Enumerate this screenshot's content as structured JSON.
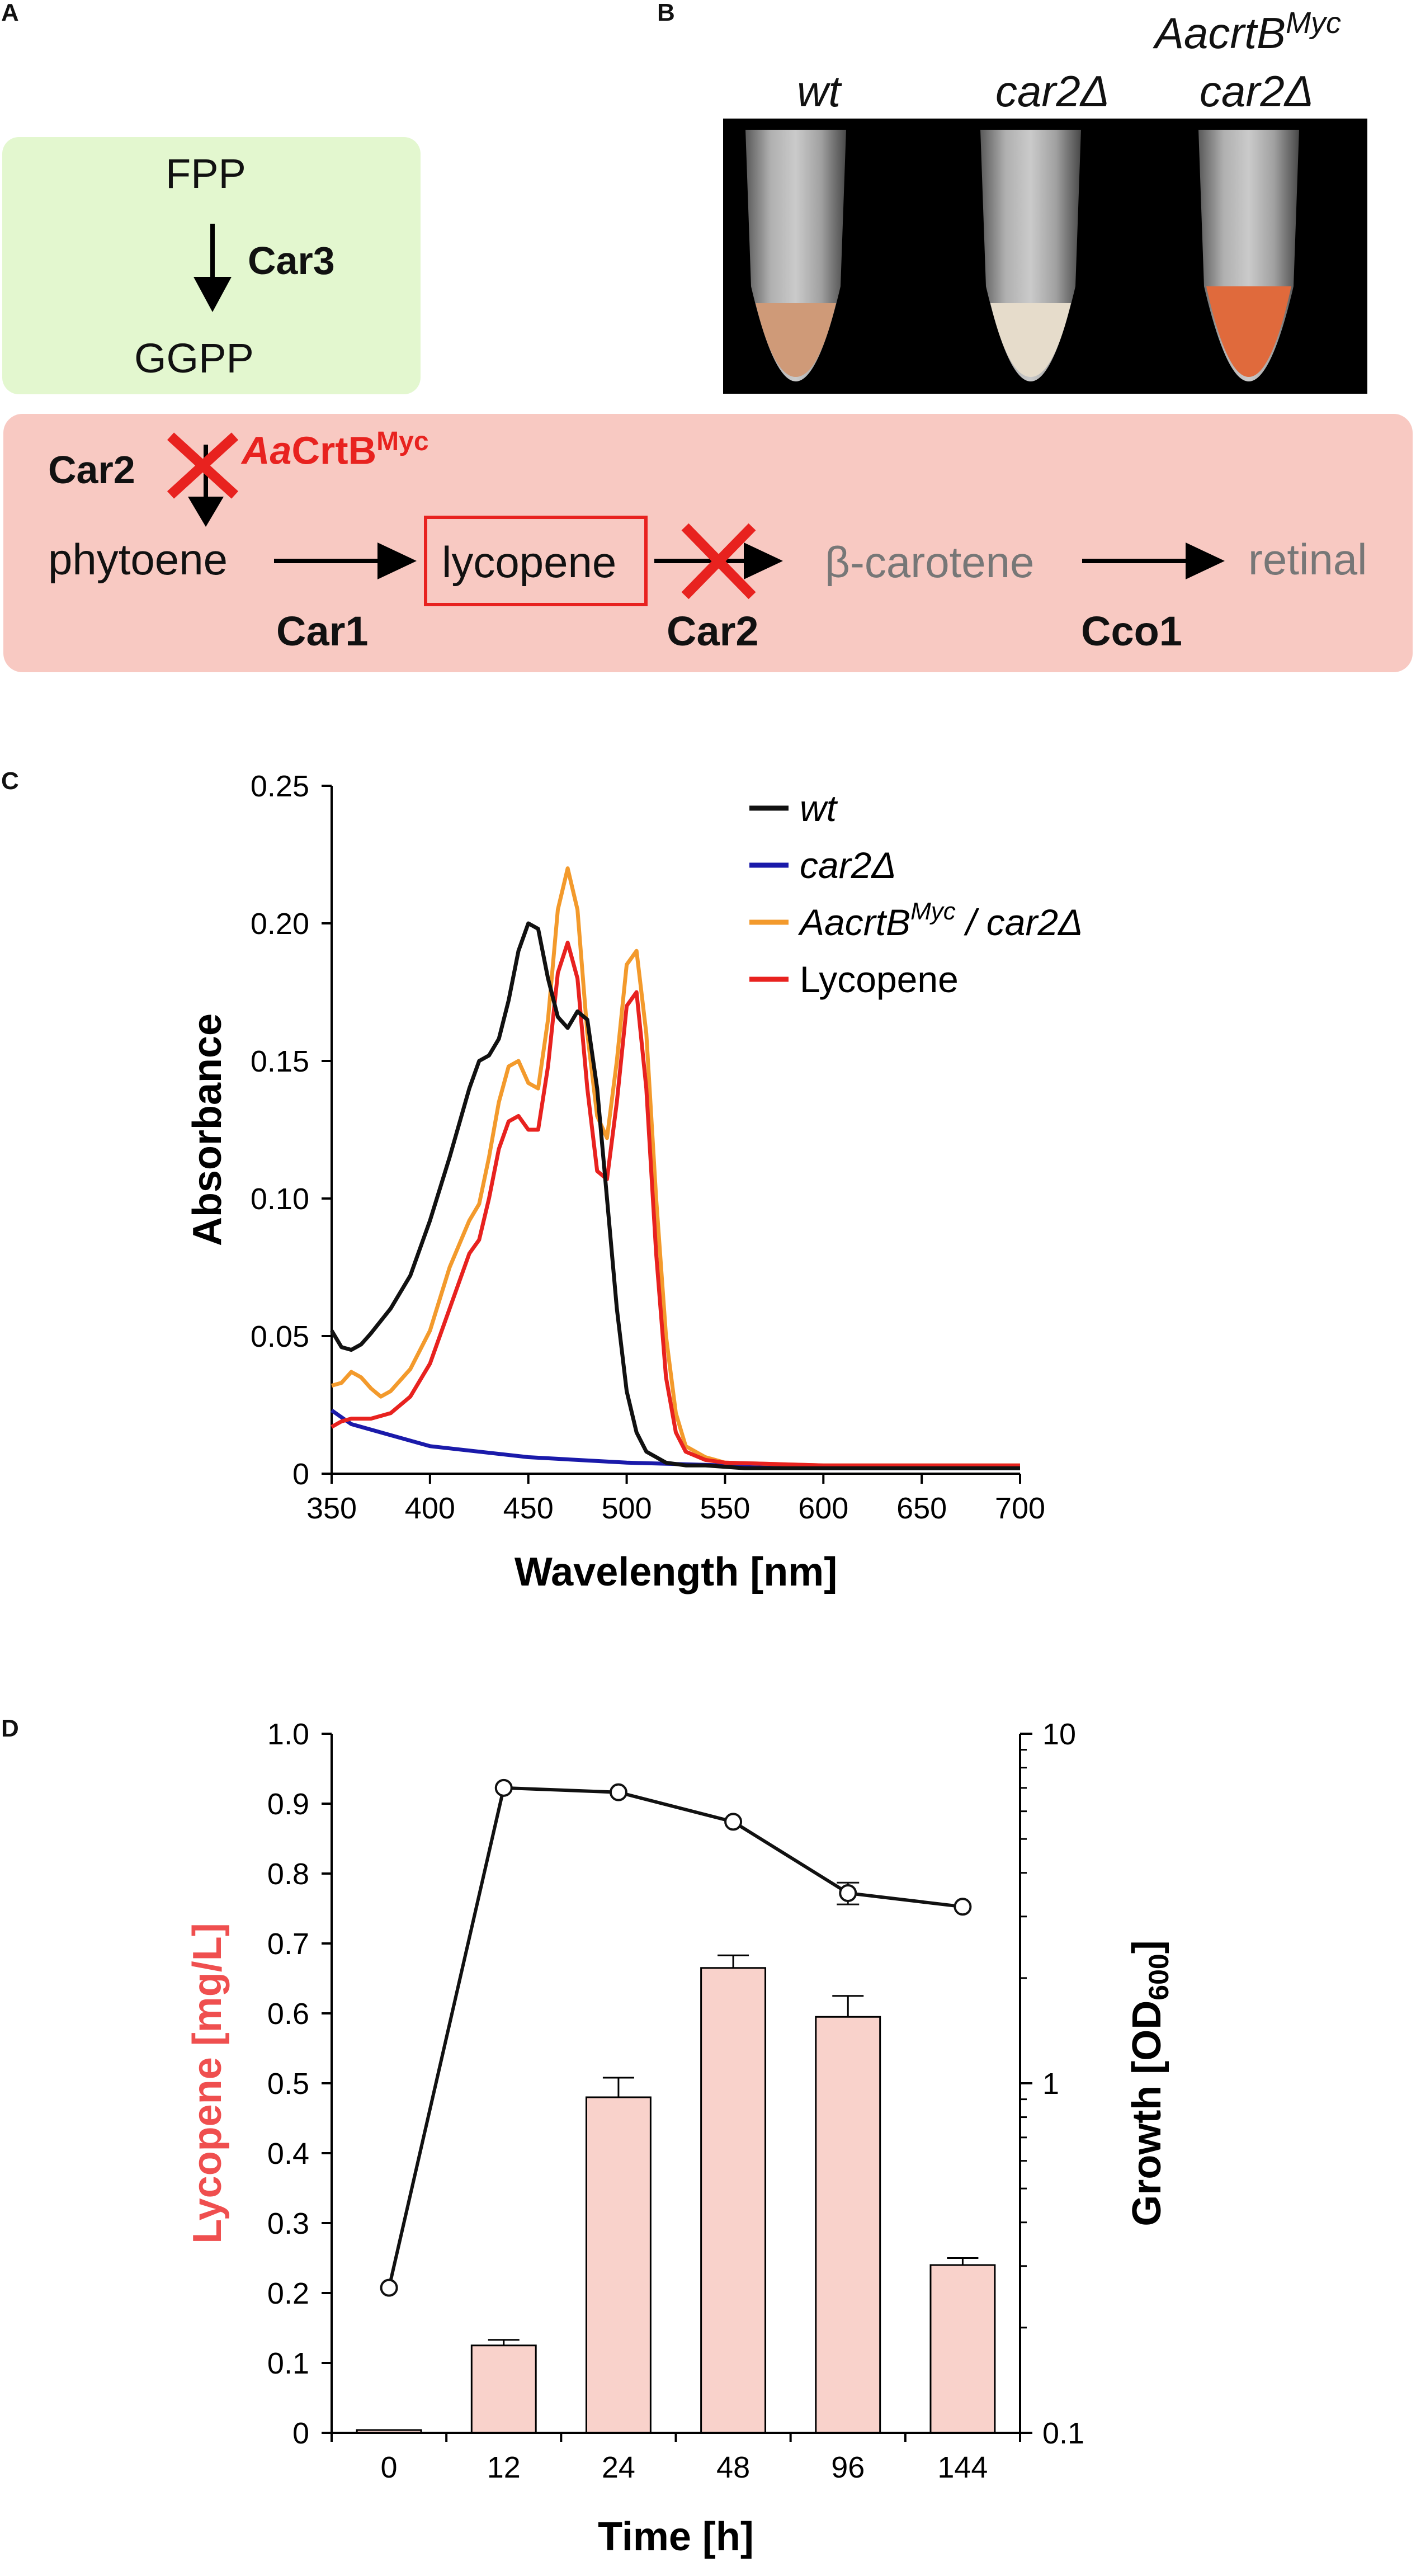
{
  "panels": {
    "a": "A",
    "b": "B",
    "c": "C",
    "d": "D"
  },
  "pathway": {
    "fpp": "FPP",
    "car3": "Car3",
    "ggpp": "GGPP",
    "car2_top": "Car2",
    "aacrtb_prefix": "Aa",
    "aacrtb_main": "CrtB",
    "aacrtb_sup": "Myc",
    "phytoene": "phytoene",
    "lycopene": "lycopene",
    "beta_carotene": "β-carotene",
    "retinal": "retinal",
    "car1": "Car1",
    "car2_bottom": "Car2",
    "cco1": "Cco1",
    "colors": {
      "green_box": "#e3f7cf",
      "pink_box": "#f8c9c2",
      "red": "#e8221f",
      "grey": "#777777"
    }
  },
  "photo": {
    "labels": {
      "wt": "wt",
      "car2": "car2Δ",
      "strain_top": "AacrtB",
      "strain_top_sup": "Myc",
      "strain_bottom": "car2Δ"
    },
    "tube_colors": [
      "#cf9a78",
      "#e6dccb",
      "#e06a3c"
    ]
  },
  "chart_data": [
    {
      "type": "line",
      "panel": "C",
      "xlabel": "Wavelength [nm]",
      "ylabel": "Absorbance",
      "xlim": [
        350,
        700
      ],
      "ylim": [
        0,
        0.25
      ],
      "xticks": [
        350,
        400,
        450,
        500,
        550,
        600,
        650,
        700
      ],
      "yticks": [
        0,
        0.05,
        0.1,
        0.15,
        0.2,
        0.25
      ],
      "ytick_labels": [
        "0",
        "0.05",
        "0.10",
        "0.15",
        "0.20",
        "0.25"
      ],
      "series": [
        {
          "name": "wt",
          "color": "#111111",
          "x": [
            350,
            355,
            360,
            365,
            370,
            380,
            390,
            400,
            410,
            420,
            425,
            430,
            435,
            440,
            445,
            450,
            455,
            460,
            465,
            470,
            475,
            480,
            485,
            490,
            495,
            500,
            505,
            510,
            520,
            530,
            540,
            560,
            600,
            650,
            700
          ],
          "y": [
            0.052,
            0.046,
            0.045,
            0.047,
            0.051,
            0.06,
            0.072,
            0.092,
            0.115,
            0.14,
            0.15,
            0.152,
            0.158,
            0.172,
            0.19,
            0.2,
            0.198,
            0.18,
            0.166,
            0.162,
            0.168,
            0.165,
            0.14,
            0.1,
            0.06,
            0.03,
            0.015,
            0.008,
            0.004,
            0.003,
            0.003,
            0.002,
            0.002,
            0.002,
            0.002
          ]
        },
        {
          "name": "car2Δ",
          "color": "#1a1aaa",
          "x": [
            350,
            360,
            380,
            400,
            450,
            500,
            550,
            600,
            650,
            700
          ],
          "y": [
            0.023,
            0.018,
            0.014,
            0.01,
            0.006,
            0.004,
            0.003,
            0.002,
            0.002,
            0.002
          ]
        },
        {
          "name": "AacrtBMyc / car2Δ",
          "color": "#f39a2c",
          "x": [
            350,
            355,
            360,
            365,
            370,
            375,
            380,
            390,
            400,
            410,
            420,
            425,
            430,
            435,
            440,
            445,
            450,
            455,
            460,
            465,
            470,
            475,
            480,
            485,
            490,
            495,
            500,
            505,
            510,
            515,
            520,
            525,
            530,
            540,
            550,
            600,
            650,
            700
          ],
          "y": [
            0.032,
            0.033,
            0.037,
            0.035,
            0.031,
            0.028,
            0.03,
            0.038,
            0.052,
            0.075,
            0.092,
            0.098,
            0.115,
            0.135,
            0.148,
            0.15,
            0.142,
            0.14,
            0.165,
            0.205,
            0.22,
            0.205,
            0.16,
            0.13,
            0.122,
            0.15,
            0.185,
            0.19,
            0.16,
            0.1,
            0.05,
            0.022,
            0.01,
            0.006,
            0.004,
            0.003,
            0.003,
            0.003
          ]
        },
        {
          "name": "Lycopene",
          "color": "#e8221f",
          "x": [
            350,
            355,
            360,
            365,
            370,
            375,
            380,
            390,
            400,
            410,
            420,
            425,
            430,
            435,
            440,
            445,
            450,
            455,
            460,
            465,
            470,
            475,
            480,
            485,
            490,
            495,
            500,
            505,
            510,
            515,
            520,
            525,
            530,
            540,
            550,
            600,
            650,
            700
          ],
          "y": [
            0.017,
            0.019,
            0.02,
            0.02,
            0.02,
            0.021,
            0.022,
            0.028,
            0.04,
            0.06,
            0.08,
            0.085,
            0.1,
            0.118,
            0.128,
            0.13,
            0.125,
            0.125,
            0.148,
            0.182,
            0.193,
            0.18,
            0.14,
            0.11,
            0.107,
            0.135,
            0.17,
            0.175,
            0.14,
            0.08,
            0.035,
            0.015,
            0.008,
            0.005,
            0.004,
            0.003,
            0.003,
            0.003
          ]
        }
      ]
    },
    {
      "type": "bar",
      "panel": "D",
      "xlabel": "Time [h]",
      "ylabel_left": "Lycopene  [mg/L]",
      "ylabel_right_main": "Growth [OD",
      "ylabel_right_sub": "600",
      "ylabel_right_end": "]",
      "categories": [
        "0",
        "12",
        "24",
        "48",
        "96",
        "144"
      ],
      "bar_values": [
        0.004,
        0.125,
        0.48,
        0.665,
        0.595,
        0.24
      ],
      "bar_errors": [
        0,
        0.008,
        0.028,
        0.018,
        0.03,
        0.01
      ],
      "bar_color": "#f9d2cb",
      "ylim_left": [
        0,
        1.0
      ],
      "yticks_left": [
        "0",
        "0.1",
        "0.2",
        "0.3",
        "0.4",
        "0.5",
        "0.6",
        "0.7",
        "0.8",
        "0.9",
        "1.0"
      ],
      "growth_values": [
        0.26,
        7.0,
        6.8,
        5.6,
        3.5,
        3.2
      ],
      "growth_errors": [
        0,
        0,
        0,
        0,
        0.25,
        0
      ],
      "ylim_right_log": [
        0.1,
        10
      ],
      "yticks_right": [
        "0.1",
        "1",
        "10"
      ]
    }
  ]
}
